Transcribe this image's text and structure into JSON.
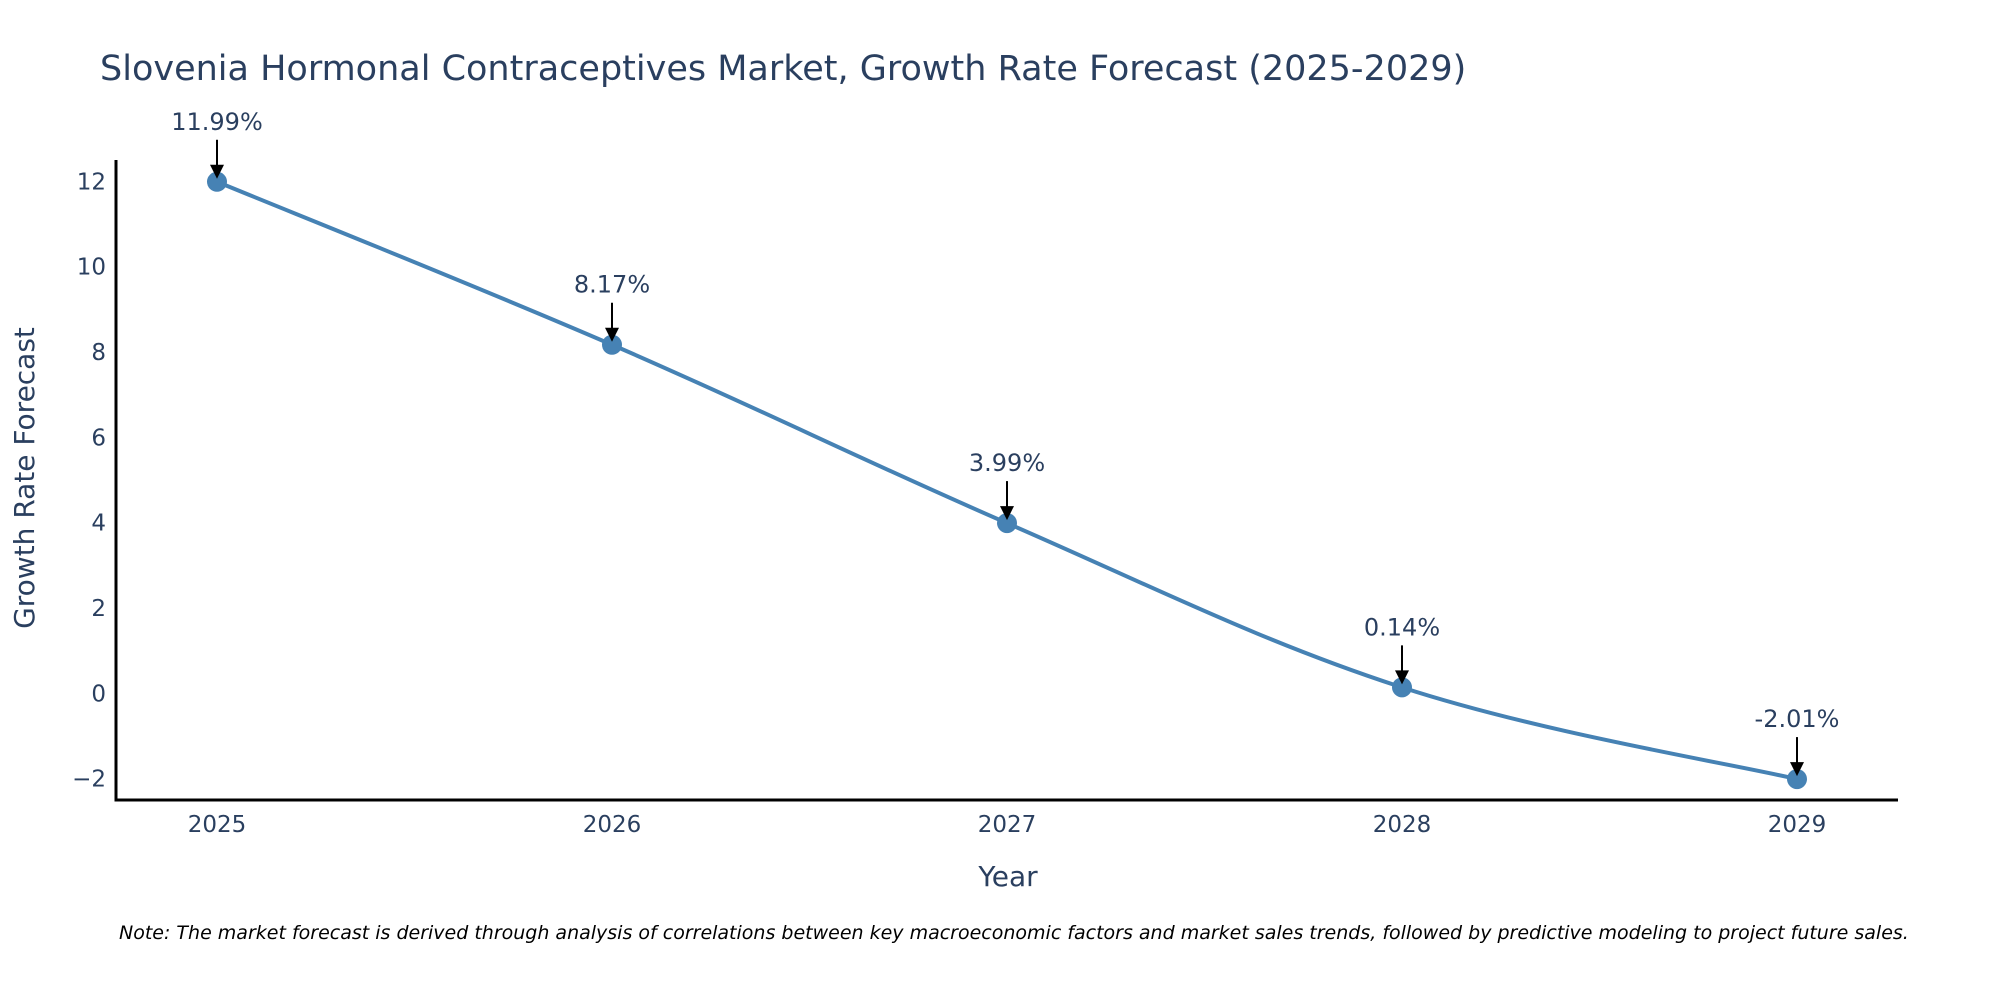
{
  "chart_data": {
    "type": "line",
    "title": "Slovenia Hormonal Contraceptives Market, Growth Rate Forecast (2025-2029)",
    "xlabel": "Year",
    "ylabel": "Growth Rate Forecast",
    "categories": [
      "2025",
      "2026",
      "2027",
      "2028",
      "2029"
    ],
    "series": [
      {
        "name": "Growth Rate Forecast",
        "values": [
          11.99,
          8.17,
          3.99,
          0.14,
          -2.01
        ],
        "labels": [
          "11.99%",
          "8.17%",
          "3.99%",
          "0.14%",
          "-2.01%"
        ]
      }
    ],
    "ylim": [
      -2.5,
      12.5
    ],
    "yticks": [
      -2,
      0,
      2,
      4,
      6,
      8,
      10,
      12
    ],
    "ytick_labels": [
      "−2",
      "0",
      "2",
      "4",
      "6",
      "8",
      "10",
      "12"
    ],
    "grid": false,
    "line_color": "#4682b4",
    "marker_color": "#4682b4",
    "note": "Note: The market forecast is derived through analysis of correlations between key macroeconomic factors and market sales trends, followed by predictive modeling to project future sales."
  }
}
